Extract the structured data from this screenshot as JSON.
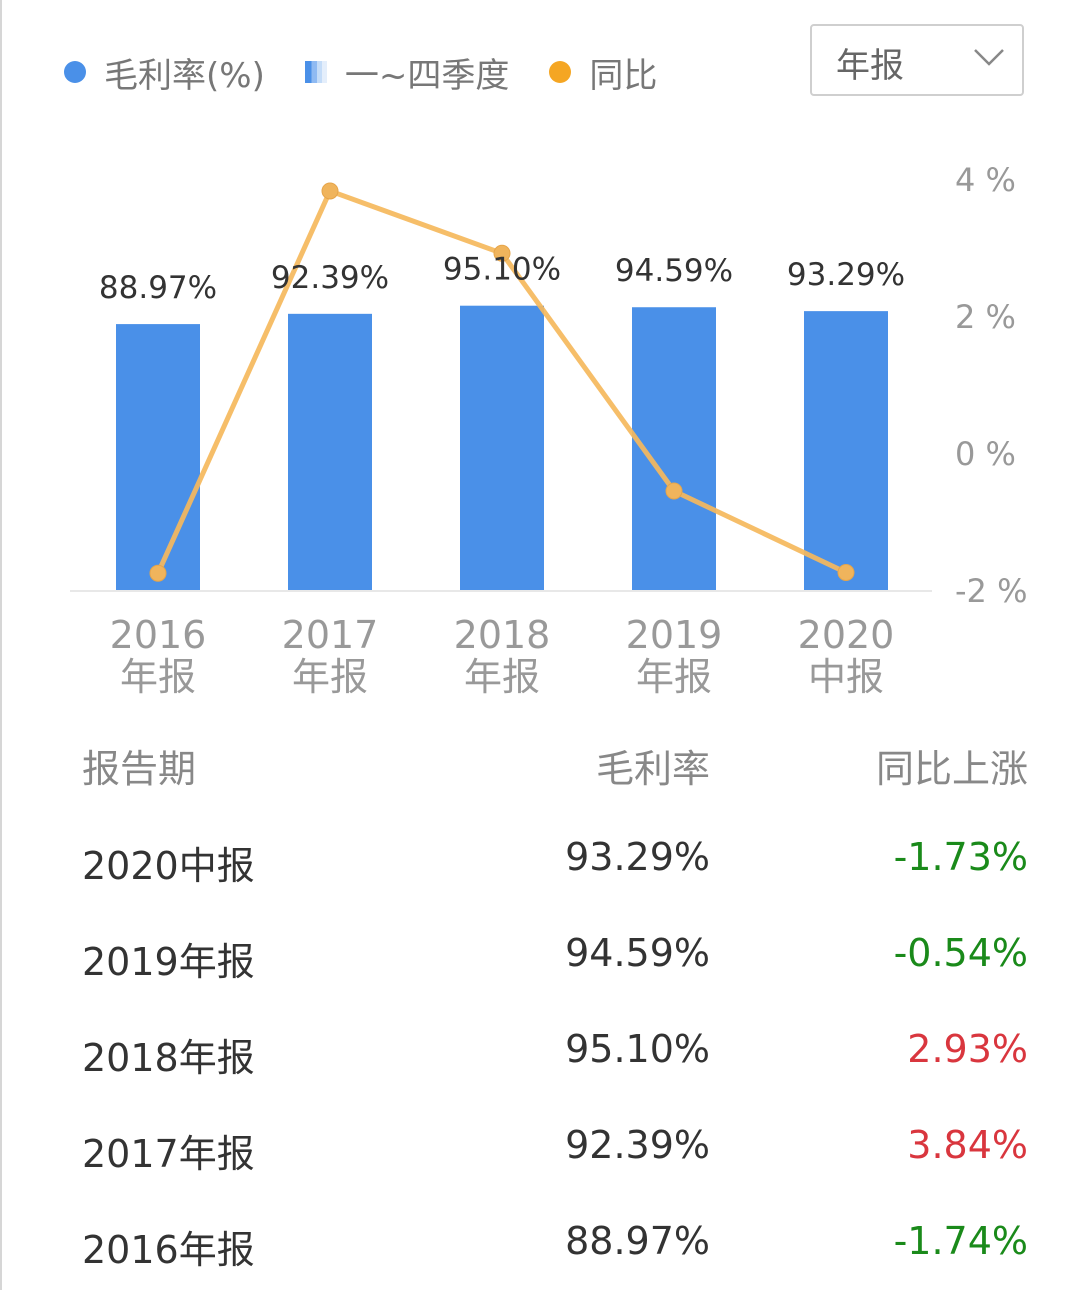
{
  "legend": {
    "items": [
      {
        "label": "毛利率(%)",
        "color": "#4a90e8"
      },
      {
        "label": "一~四季度",
        "color": "#4a90e8"
      },
      {
        "label": "同比",
        "color": "#f5a623"
      }
    ]
  },
  "period_select": {
    "value": "年报",
    "icon": "chevron-down-icon"
  },
  "chart_data": {
    "type": "bar",
    "categories": [
      [
        "2016",
        "年报"
      ],
      [
        "2017",
        "年报"
      ],
      [
        "2018",
        "年报"
      ],
      [
        "2019",
        "年报"
      ],
      [
        "2020",
        "中报"
      ]
    ],
    "bar_labels": [
      "88.97%",
      "92.39%",
      "95.10%",
      "94.59%",
      "93.29%"
    ],
    "series": [
      {
        "name": "毛利率(%)",
        "values": [
          88.97,
          92.39,
          95.1,
          94.59,
          93.29
        ],
        "color": "#4a90e8",
        "axis": "left"
      },
      {
        "name": "同比",
        "type": "line",
        "values": [
          -1.74,
          3.84,
          2.93,
          -0.54,
          -1.73
        ],
        "color": "#f5b85c",
        "axis": "right"
      }
    ],
    "y_right": {
      "ticks": [
        {
          "value": 4,
          "label": "4 %"
        },
        {
          "value": 2,
          "label": "2 %"
        },
        {
          "value": 0,
          "label": "0 %"
        },
        {
          "value": -2,
          "label": "-2 %"
        }
      ],
      "range": [
        -2,
        4
      ]
    },
    "y_left_range": [
      0,
      120
    ],
    "grid": false,
    "legend_position": "top-left"
  },
  "table": {
    "headers": [
      "报告期",
      "毛利率",
      "同比上涨"
    ],
    "rows": [
      {
        "period": "2020中报",
        "margin": "93.29%",
        "yoy": "-1.73%",
        "yoy_color": "#1a8a1a"
      },
      {
        "period": "2019年报",
        "margin": "94.59%",
        "yoy": "-0.54%",
        "yoy_color": "#1a8a1a"
      },
      {
        "period": "2018年报",
        "margin": "95.10%",
        "yoy": "2.93%",
        "yoy_color": "#d9363e"
      },
      {
        "period": "2017年报",
        "margin": "92.39%",
        "yoy": "3.84%",
        "yoy_color": "#d9363e"
      },
      {
        "period": "2016年报",
        "margin": "88.97%",
        "yoy": "-1.74%",
        "yoy_color": "#1a8a1a"
      }
    ]
  }
}
